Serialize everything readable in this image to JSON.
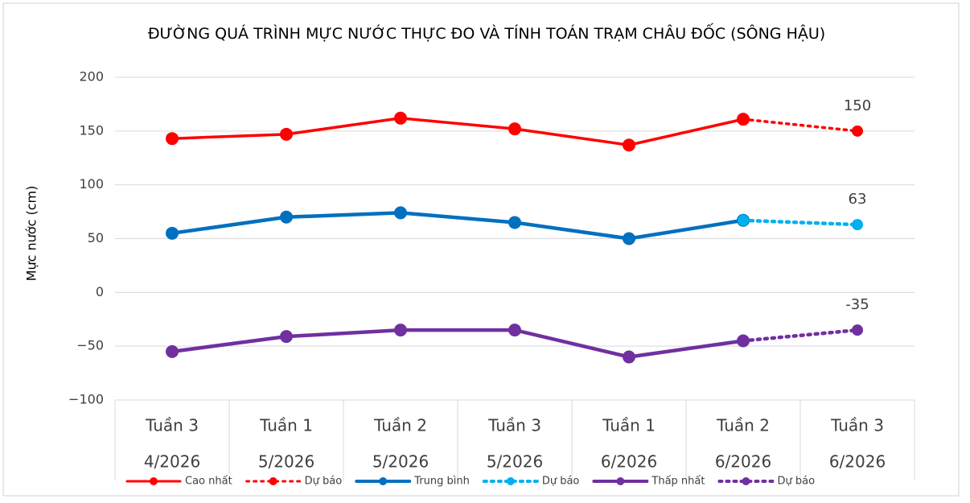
{
  "chart_data": {
    "type": "line",
    "title": "ĐƯỜNG QUÁ TRÌNH MỰC NƯỚC THỰC ĐO VÀ TÍNH TOÁN TRẠM CHÂU ĐỐC (SÔNG HẬU)",
    "y_label": "Mực nước (cm)",
    "categories": [
      [
        "Tuần 3",
        "4/2026"
      ],
      [
        "Tuần 1",
        "5/2026"
      ],
      [
        "Tuần 2",
        "5/2026"
      ],
      [
        "Tuần 3",
        "5/2026"
      ],
      [
        "Tuần 1",
        "6/2026"
      ],
      [
        "Tuần 2",
        "6/2026"
      ],
      [
        "Tuần 3",
        "6/2026"
      ]
    ],
    "series": [
      {
        "name": "Cao nhất",
        "color": "#ff0000",
        "style": "solid",
        "values": [
          143,
          147,
          162,
          152,
          137,
          161,
          null
        ]
      },
      {
        "name": "Dự báo",
        "color": "#ff0000",
        "style": "dotted",
        "show_last_label": true,
        "values": [
          null,
          null,
          null,
          null,
          null,
          161,
          150
        ]
      },
      {
        "name": "Trung bình",
        "color": "#0070c0",
        "style": "solid",
        "values": [
          55,
          70,
          74,
          65,
          50,
          67,
          null
        ]
      },
      {
        "name": "Dự báo",
        "color": "#00b0f0",
        "style": "dotted",
        "show_last_label": true,
        "values": [
          null,
          null,
          null,
          null,
          null,
          67,
          63
        ]
      },
      {
        "name": "Thấp nhất",
        "color": "#7030a0",
        "style": "solid",
        "values": [
          -55,
          -41,
          -35,
          -35,
          -60,
          -45,
          null
        ]
      },
      {
        "name": "Dự báo",
        "color": "#7030a0",
        "style": "dotted",
        "show_last_label": true,
        "values": [
          null,
          null,
          null,
          null,
          null,
          -45,
          -35
        ]
      }
    ],
    "ylim": [
      -100,
      200
    ],
    "yticks": [
      {
        "value": -100,
        "label": "−100"
      },
      {
        "value": -50,
        "label": "−50"
      },
      0,
      50,
      100,
      150,
      200
    ],
    "grid": true,
    "legend": "bottom"
  }
}
